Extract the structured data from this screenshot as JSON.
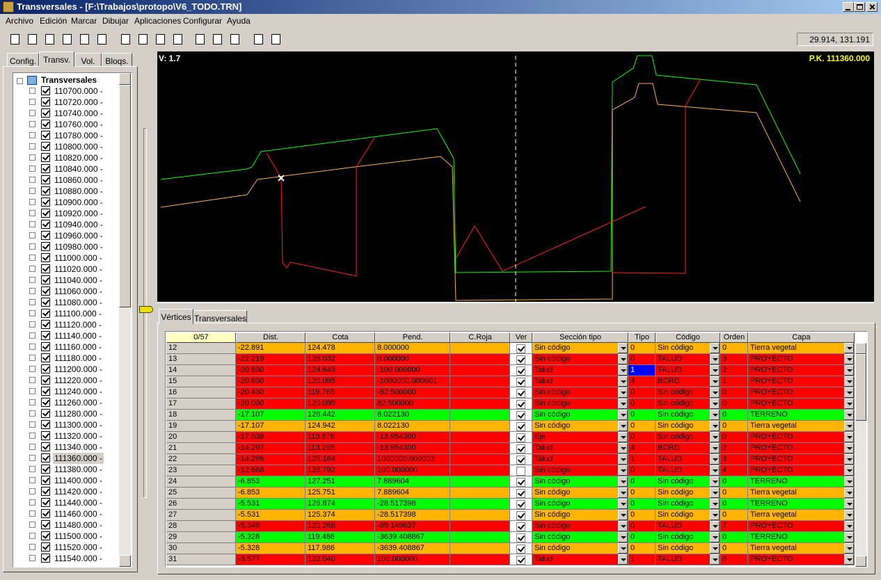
{
  "window": {
    "title": "Transversales - [F:\\Trabajos\\protopo\\V6_TODO.TRN]",
    "menu": [
      "Archivo",
      "Edición",
      "Marcar",
      "Dibujar",
      "Aplicaciones",
      "Configurar",
      "Ayuda"
    ],
    "coordinates": "29.914, 131.191"
  },
  "left_panel": {
    "tabs": [
      "Config.",
      "Transv.",
      "Vol.",
      "Bloqs."
    ],
    "active_tab": 1,
    "tree": {
      "root": "Transversales",
      "selected": 33,
      "items": [
        "110700.000 -",
        "110720.000 -",
        "110740.000 -",
        "110760.000 -",
        "110780.000 -",
        "110800.000 -",
        "110820.000 -",
        "110840.000 -",
        "110860.000 -",
        "110880.000 -",
        "110900.000 -",
        "110920.000 -",
        "110940.000 -",
        "110960.000 -",
        "110980.000 -",
        "111000.000 -",
        "111020.000 -",
        "111040.000 -",
        "111060.000 -",
        "111080.000 -",
        "111100.000 -",
        "111120.000 -",
        "111140.000 -",
        "111160.000 -",
        "111180.000 -",
        "111200.000 -",
        "111220.000 -",
        "111240.000 -",
        "111260.000 -",
        "111280.000 -",
        "111300.000 -",
        "111320.000 -",
        "111340.000 -",
        "111360.000 -",
        "111380.000 -",
        "111400.000 -",
        "111420.000 -",
        "111440.000 -",
        "111460.000 -",
        "111480.000 -",
        "111500.000 -",
        "111520.000 -",
        "111540.000 -"
      ]
    }
  },
  "drawing": {
    "scale_label": "V: 1.7",
    "station_label": "P.K. 111360.000"
  },
  "bottom_tabs": {
    "tabs": [
      "Vértices",
      "Transversales"
    ],
    "active_tab": 0
  },
  "table": {
    "columns": [
      "0/57",
      "Dist.",
      "Cota",
      "Pend.",
      "C.Roja",
      "Ver",
      "Sección tipo",
      "Tipo",
      "Código",
      "Orden",
      "Capa"
    ],
    "focus_cell": [
      2,
      5
    ],
    "rows": [
      {
        "cells": [
          "12",
          "-22.891",
          "124.478",
          "8.000000",
          "Sin código",
          "0",
          "Sin código",
          "0",
          "Tierra vegetal"
        ],
        "ver": true,
        "color": "#ffb400"
      },
      {
        "cells": [
          "13",
          "-22.219",
          "126.032",
          "0.000000",
          "Sin código",
          "0",
          "TALUD",
          "3",
          "PROYECTO"
        ],
        "ver": true,
        "color": "#ff0000"
      },
      {
        "cells": [
          "14",
          "-20.830",
          "124.643",
          "-100.000000",
          "Talud",
          "1",
          "TALUD",
          "2",
          "PROYECTO"
        ],
        "ver": true,
        "color": "#ff0000"
      },
      {
        "cells": [
          "15",
          "-20.830",
          "120.095",
          "-1000000.000001",
          "Talud",
          "4",
          "BORD",
          "1",
          "PROYECTO"
        ],
        "ver": true,
        "color": "#ff0000"
      },
      {
        "cells": [
          "16",
          "-20.430",
          "119.765",
          "-82.500000",
          "Sin código",
          "0",
          "Sin código",
          "0",
          "PROYECTO"
        ],
        "ver": true,
        "color": "#ff0000"
      },
      {
        "cells": [
          "17",
          "-20.030",
          "120.095",
          "82.500000",
          "Sin código",
          "0",
          "Sin código",
          "0",
          "PROYECTO"
        ],
        "ver": true,
        "color": "#ff0000"
      },
      {
        "cells": [
          "18",
          "-17.107",
          "126.442",
          "8.022130",
          "Sin código",
          "0",
          "Sin código",
          "0",
          "TERRENO"
        ],
        "ver": true,
        "color": "#00ff00"
      },
      {
        "cells": [
          "19",
          "-17.107",
          "124.942",
          "8.022130",
          "Sin código",
          "0",
          "Sin código",
          "0",
          "Tierra vegetal"
        ],
        "ver": true,
        "color": "#ffb400"
      },
      {
        "cells": [
          "20",
          "-17.038",
          "113.678",
          "-13.954300",
          "Eje",
          "0",
          "Sin código",
          "0",
          "PROYECTO"
        ],
        "ver": true,
        "color": "#ff0000"
      },
      {
        "cells": [
          "21",
          "-14.297",
          "113.295",
          "-13.954300",
          "Talud",
          "4",
          "BORD",
          "2",
          "PROYECTO"
        ],
        "ver": true,
        "color": "#ff0000"
      },
      {
        "cells": [
          "22",
          "-14.296",
          "125.164",
          "1000000.000003",
          "Talud",
          "1",
          "TALUD",
          "3",
          "PROYECTO"
        ],
        "ver": true,
        "color": "#ff0000"
      },
      {
        "cells": [
          "23",
          "-12.668",
          "126.792",
          "100.000000",
          "Sin código",
          "0",
          "TALUD",
          "4",
          "PROYECTO"
        ],
        "ver": false,
        "color": "#ff0000"
      },
      {
        "cells": [
          "24",
          "-6.853",
          "127.251",
          "7.889604",
          "Sin código",
          "0",
          "Sin código",
          "0",
          "TERRENO"
        ],
        "ver": true,
        "color": "#00ff00"
      },
      {
        "cells": [
          "25",
          "-6.853",
          "125.751",
          "7.889604",
          "Sin código",
          "0",
          "Sin código",
          "0",
          "Tierra vegetal"
        ],
        "ver": true,
        "color": "#ffb400"
      },
      {
        "cells": [
          "26",
          "-5.531",
          "126.874",
          "-28.517398",
          "Sin código",
          "0",
          "Sin código",
          "0",
          "TERRENO"
        ],
        "ver": true,
        "color": "#00ff00"
      },
      {
        "cells": [
          "27",
          "-5.531",
          "125.374",
          "-28.517398",
          "Sin código",
          "0",
          "Sin código",
          "0",
          "Tierra vegetal"
        ],
        "ver": true,
        "color": "#ffb400"
      },
      {
        "cells": [
          "28",
          "-5.349",
          "120.268",
          "-89.149637",
          "Sin código",
          "0",
          "TALUD",
          "7",
          "PROYECTO"
        ],
        "ver": true,
        "color": "#ff0000"
      },
      {
        "cells": [
          "29",
          "-5.328",
          "119.486",
          "-3639.408867",
          "Sin código",
          "0",
          "Sin código",
          "0",
          "TERRENO"
        ],
        "ver": true,
        "color": "#00ff00"
      },
      {
        "cells": [
          "30",
          "-5.328",
          "117.986",
          "-3639.408867",
          "Sin código",
          "0",
          "Sin código",
          "0",
          "Tierra vegetal"
        ],
        "ver": true,
        "color": "#ffb400"
      },
      {
        "cells": [
          "31",
          "-3.577",
          "122.040",
          "100.000000",
          "Talud",
          "1",
          "TALUD",
          "6",
          "PROYECTO"
        ],
        "ver": true,
        "color": "#ff0000"
      }
    ]
  }
}
